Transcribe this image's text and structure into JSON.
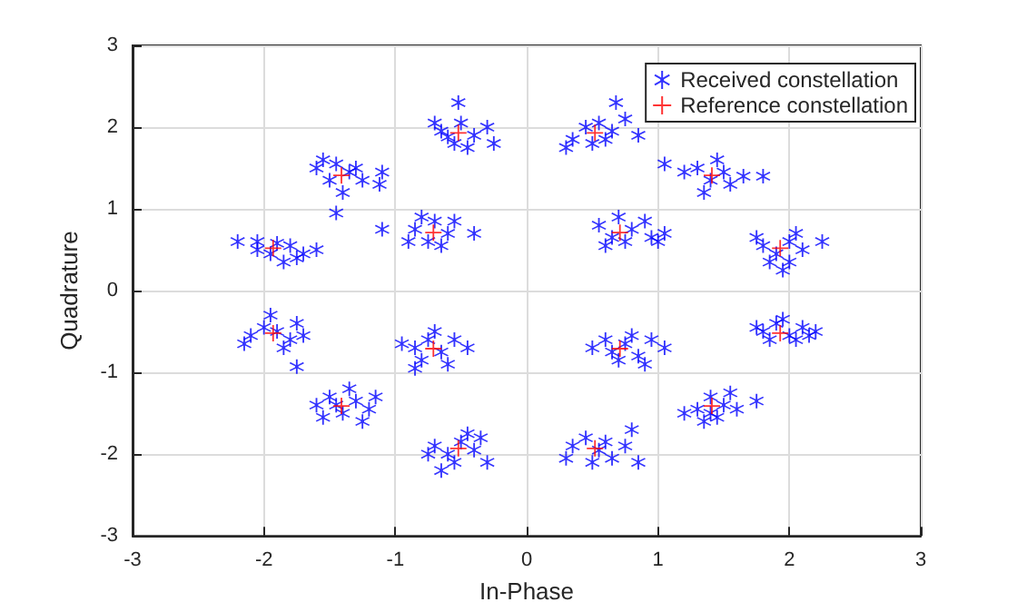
{
  "chart_data": {
    "type": "scatter",
    "xlabel": "In-Phase",
    "ylabel": "Quadrature",
    "xlim": [
      -3,
      3
    ],
    "ylim": [
      -3,
      3
    ],
    "xticks": [
      -3,
      -2,
      -1,
      0,
      1,
      2,
      3
    ],
    "yticks": [
      -3,
      -2,
      -1,
      0,
      1,
      2,
      3
    ],
    "grid": true,
    "legend": "top right",
    "series": [
      {
        "name": "Received constellation",
        "color": "#0000ff",
        "marker": "star",
        "x": [
          0.35,
          0.45,
          0.55,
          0.65,
          0.75,
          0.5,
          0.85,
          0.68,
          0.3,
          0.6,
          -0.65,
          -0.5,
          -0.4,
          -0.55,
          -0.3,
          -0.52,
          -0.25,
          -0.7,
          -0.45,
          -0.6,
          -1.6,
          -1.5,
          -1.35,
          -1.25,
          -1.55,
          -1.4,
          -1.1,
          -1.12,
          -1.45,
          -1.3,
          -1.45,
          -2.05,
          -1.95,
          -1.8,
          -1.75,
          -2.2,
          -1.85,
          -1.6,
          -2.05,
          -1.9,
          -1.7,
          -0.85,
          -0.7,
          -0.6,
          -0.75,
          -0.9,
          -0.55,
          -0.4,
          -0.65,
          -0.8,
          -1.1,
          0.55,
          0.65,
          0.8,
          0.75,
          0.9,
          0.95,
          1.05,
          0.6,
          0.7,
          1.0,
          1.3,
          1.4,
          1.5,
          1.55,
          1.2,
          1.35,
          1.65,
          1.8,
          1.05,
          1.45,
          1.8,
          1.9,
          2.0,
          2.1,
          1.85,
          2.0,
          2.25,
          1.75,
          1.95,
          2.05,
          1.8,
          1.9,
          2.0,
          2.1,
          2.2,
          1.85,
          1.75,
          2.05,
          1.95,
          2.15,
          0.5,
          0.6,
          0.75,
          0.85,
          0.95,
          0.7,
          1.05,
          0.65,
          0.8,
          0.9,
          1.3,
          1.4,
          1.5,
          1.45,
          1.2,
          1.6,
          1.35,
          1.55,
          1.75,
          1.4,
          0.35,
          0.45,
          0.55,
          0.65,
          0.75,
          0.5,
          0.3,
          0.85,
          0.8,
          0.6,
          -0.7,
          -0.6,
          -0.5,
          -0.4,
          -0.35,
          -0.55,
          -0.3,
          -0.65,
          -0.45,
          -0.75,
          -0.85,
          -0.75,
          -0.65,
          -0.55,
          -0.8,
          -0.6,
          -0.45,
          -0.95,
          -0.85,
          -0.7,
          -1.6,
          -1.5,
          -1.4,
          -1.3,
          -1.2,
          -1.55,
          -1.35,
          -1.25,
          -1.45,
          -1.15,
          -2.1,
          -2.0,
          -1.9,
          -1.8,
          -1.75,
          -2.15,
          -1.85,
          -1.95,
          -1.7,
          -1.75
        ],
        "values": [
          1.85,
          2.0,
          2.05,
          1.95,
          2.1,
          1.8,
          1.9,
          2.3,
          1.75,
          1.85,
          1.95,
          2.05,
          1.9,
          1.8,
          2.0,
          2.3,
          1.8,
          2.05,
          1.75,
          1.88,
          1.5,
          1.35,
          1.45,
          1.35,
          1.6,
          1.2,
          1.45,
          1.3,
          1.55,
          1.5,
          0.95,
          0.6,
          0.45,
          0.55,
          0.4,
          0.6,
          0.35,
          0.5,
          0.5,
          0.58,
          0.45,
          0.75,
          0.85,
          0.7,
          0.6,
          0.6,
          0.85,
          0.7,
          0.55,
          0.9,
          0.75,
          0.8,
          0.65,
          0.75,
          0.6,
          0.85,
          0.65,
          0.7,
          0.55,
          0.9,
          0.6,
          1.5,
          1.35,
          1.45,
          1.3,
          1.45,
          1.2,
          1.4,
          1.4,
          1.55,
          1.6,
          0.55,
          0.45,
          0.6,
          0.5,
          0.35,
          0.35,
          0.6,
          0.65,
          0.25,
          0.7,
          -0.5,
          -0.4,
          -0.55,
          -0.45,
          -0.5,
          -0.6,
          -0.45,
          -0.6,
          -0.35,
          -0.55,
          -0.7,
          -0.6,
          -0.65,
          -0.8,
          -0.6,
          -0.85,
          -0.7,
          -0.75,
          -0.55,
          -0.9,
          -1.45,
          -1.3,
          -1.4,
          -1.55,
          -1.5,
          -1.45,
          -1.6,
          -1.25,
          -1.35,
          -1.5,
          -1.9,
          -1.8,
          -1.95,
          -2.05,
          -1.9,
          -2.1,
          -2.05,
          -2.1,
          -1.7,
          -1.85,
          -1.9,
          -2.0,
          -1.85,
          -1.95,
          -1.8,
          -2.1,
          -2.1,
          -2.2,
          -1.75,
          -2.0,
          -0.7,
          -0.6,
          -0.75,
          -0.6,
          -0.85,
          -0.9,
          -0.7,
          -0.65,
          -0.95,
          -0.5,
          -1.4,
          -1.3,
          -1.5,
          -1.35,
          -1.45,
          -1.55,
          -1.2,
          -1.6,
          -1.4,
          -1.3,
          -0.55,
          -0.45,
          -0.5,
          -0.6,
          -0.4,
          -0.65,
          -0.7,
          -0.3,
          -0.55,
          -0.93
        ]
      },
      {
        "name": "Reference constellation",
        "color": "#ff0000",
        "marker": "cross",
        "x": [
          1.93,
          1.41,
          0.52,
          -0.52,
          -1.41,
          -1.93,
          -1.93,
          -1.41,
          -0.52,
          0.52,
          1.41,
          1.93,
          0.71,
          -0.71,
          -0.71,
          0.71
        ],
        "values": [
          0.52,
          1.41,
          1.93,
          1.93,
          1.41,
          0.52,
          -0.52,
          -1.41,
          -1.93,
          -1.93,
          -1.41,
          -0.52,
          0.71,
          0.71,
          -0.71,
          -0.71
        ]
      }
    ]
  }
}
